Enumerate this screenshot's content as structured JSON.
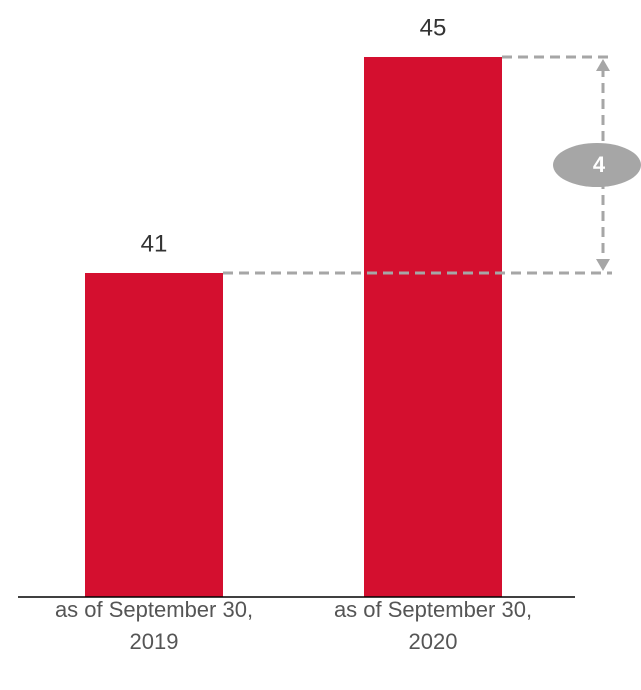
{
  "chart_data": {
    "type": "bar",
    "categories": [
      "as of September 30, 2019",
      "as of September 30, 2020"
    ],
    "values": [
      41,
      45
    ],
    "color": "#d40f2f",
    "ylim": [
      35,
      46
    ],
    "annotation": "4"
  }
}
